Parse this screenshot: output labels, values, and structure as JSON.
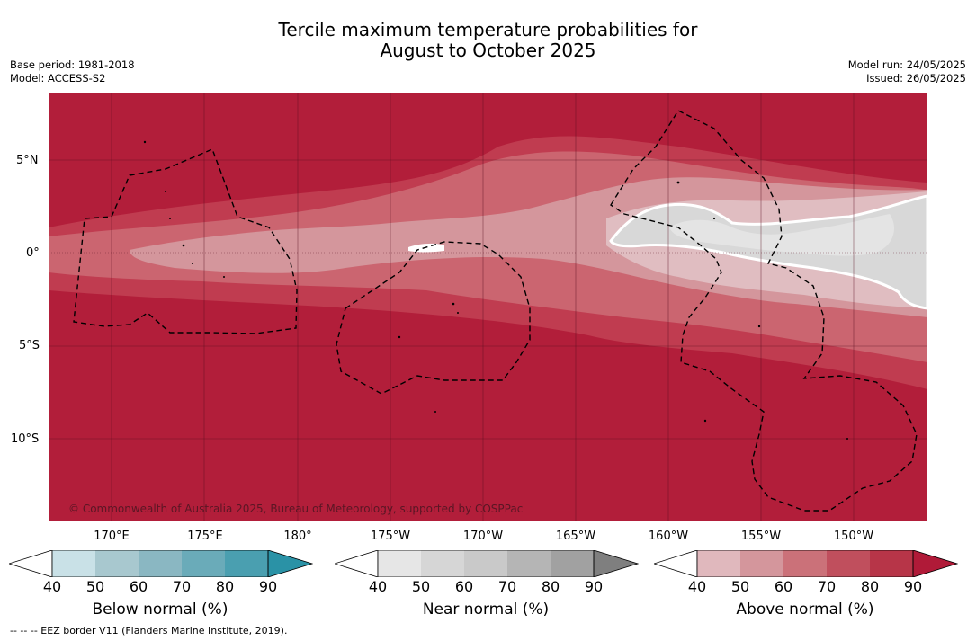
{
  "title": {
    "line1": "Tercile maximum temperature probabilities for",
    "line2": "August to October 2025"
  },
  "meta_left": {
    "base_period": "Base period: 1981-2018",
    "model": "Model: ACCESS-S2"
  },
  "meta_right": {
    "model_run": "Model run: 24/05/2025",
    "issued": "Issued: 26/05/2025"
  },
  "map": {
    "lat_labels": [
      "5°N",
      "0°",
      "5°S",
      "10°S"
    ],
    "lon_labels": [
      "170°E",
      "175°E",
      "180°",
      "175°W",
      "170°W",
      "165°W",
      "160°W",
      "155°W",
      "150°W"
    ],
    "copyright": "© Commonwealth of Australia 2025, Bureau of Meteorology, supported by COSPPac",
    "colors": {
      "ocean_base": "#b21e3a",
      "above_70": "#c03c50",
      "above_60": "#cb6570",
      "above_50": "#d4969c",
      "near_40": "#e0bdc1",
      "near_50": "#d8d8d8",
      "near_60": "#e4e4e4"
    }
  },
  "colorbars": [
    {
      "id": "below",
      "label": "Below normal (%)",
      "ticks": [
        "40",
        "50",
        "60",
        "70",
        "80",
        "90"
      ],
      "colors": [
        "#ffffff",
        "#c9e1e7",
        "#a8c8cf",
        "#8ab7c2",
        "#6aabb9",
        "#4a9fb0",
        "#2a92a6"
      ]
    },
    {
      "id": "near",
      "label": "Near normal (%)",
      "ticks": [
        "40",
        "50",
        "60",
        "70",
        "80",
        "90"
      ],
      "colors": [
        "#ffffff",
        "#e6e6e6",
        "#d6d6d6",
        "#c9c9c9",
        "#b5b5b5",
        "#a1a1a1",
        "#7f7f7f"
      ]
    },
    {
      "id": "above",
      "label": "Above normal (%)",
      "ticks": [
        "40",
        "50",
        "60",
        "70",
        "80",
        "90"
      ],
      "colors": [
        "#ffffff",
        "#e0b8bd",
        "#d4969c",
        "#cb7179",
        "#c04f5d",
        "#b73548",
        "#b01a38"
      ]
    }
  ],
  "footnote": "--  --  -- EEZ border V11 (Flanders Marine Institute, 2019)."
}
